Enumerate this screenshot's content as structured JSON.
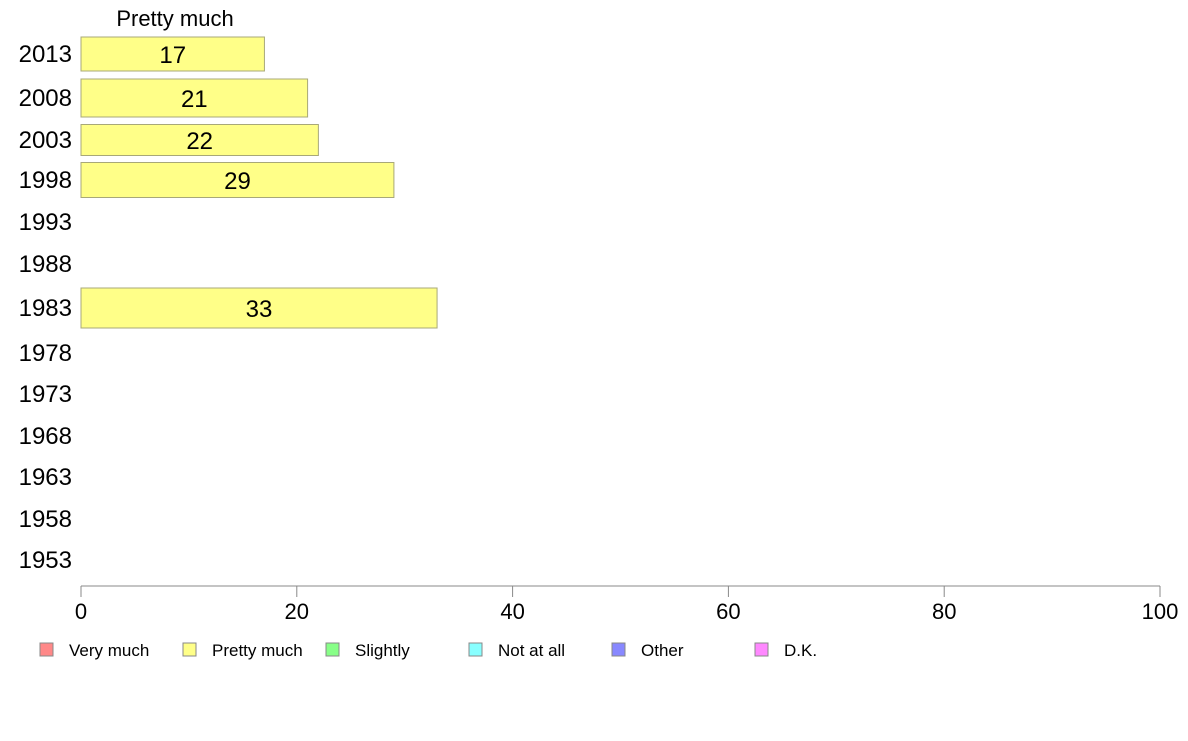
{
  "chart_data": {
    "type": "bar",
    "orientation": "horizontal",
    "series_header": "Pretty much",
    "categories": [
      "2013",
      "2008",
      "2003",
      "1998",
      "1993",
      "1988",
      "1983",
      "1978",
      "1973",
      "1968",
      "1963",
      "1958",
      "1953"
    ],
    "series": [
      {
        "name": "Pretty much",
        "color": "#ffff88",
        "values": [
          17,
          21,
          22,
          29,
          null,
          null,
          33,
          null,
          null,
          null,
          null,
          null,
          null
        ]
      }
    ],
    "data_labels": [
      "17",
      "21",
      "22",
      "29",
      "",
      "",
      "33",
      "",
      "",
      "",
      "",
      "",
      ""
    ],
    "xlim": [
      0,
      100
    ],
    "x_ticks": [
      "0",
      "20",
      "40",
      "60",
      "80",
      "100"
    ],
    "xlabel": "",
    "ylabel": "",
    "grid": false,
    "legend_position": "bottom",
    "legend": [
      {
        "label": "Very much",
        "color": "#ff8888"
      },
      {
        "label": "Pretty much",
        "color": "#ffff88"
      },
      {
        "label": "Slightly",
        "color": "#88ff88"
      },
      {
        "label": "Not at all",
        "color": "#88ffff"
      },
      {
        "label": "Other",
        "color": "#8888ff"
      },
      {
        "label": "D.K.",
        "color": "#ff88ff"
      }
    ]
  }
}
